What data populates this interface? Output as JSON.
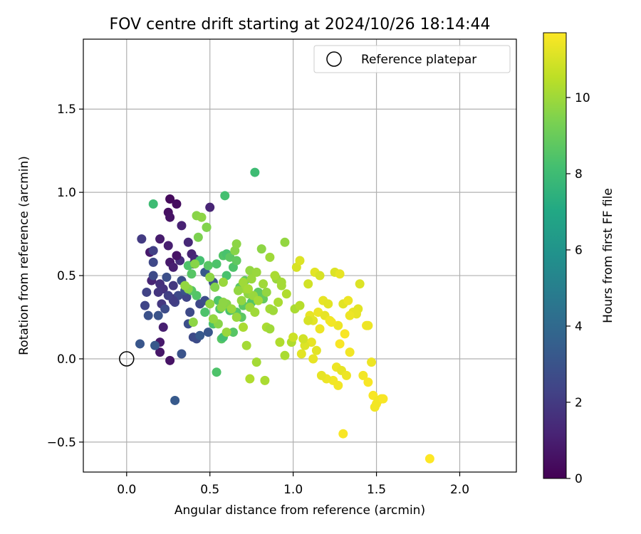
{
  "chart_data": {
    "type": "scatter",
    "title": "FOV centre drift starting at 2024/10/26 18:14:44",
    "xlabel": "Angular distance from reference (arcmin)",
    "ylabel": "Rotation from reference (arcmin)",
    "xlim": [
      -0.26,
      2.34
    ],
    "ylim": [
      -0.68,
      1.92
    ],
    "xticks": [
      0.0,
      0.5,
      1.0,
      1.5,
      2.0
    ],
    "xtick_labels": [
      "0.0",
      "0.5",
      "1.0",
      "1.5",
      "2.0"
    ],
    "yticks": [
      -0.5,
      0.0,
      0.5,
      1.0,
      1.5
    ],
    "ytick_labels": [
      "−0.5",
      "0.0",
      "0.5",
      "1.0",
      "1.5"
    ],
    "grid": true,
    "legend": {
      "placement": "top-right",
      "entries": [
        "Reference platepar"
      ]
    },
    "reference_point": {
      "x": 0.0,
      "y": 0.0,
      "label": "Reference platepar"
    },
    "colorbar": {
      "label": "Hours from first FF file",
      "range": [
        0,
        11.7
      ],
      "ticks": [
        0,
        2,
        4,
        6,
        8,
        10
      ],
      "tick_labels": [
        "0",
        "2",
        "4",
        "6",
        "8",
        "10"
      ],
      "colormap": [
        "#440154",
        "#482475",
        "#414487",
        "#355f8d",
        "#2a788e",
        "#21918c",
        "#22a884",
        "#44bf70",
        "#7ad151",
        "#bddf26",
        "#fde725"
      ]
    },
    "series": [
      {
        "x": [
          0.26,
          0.3,
          0.25,
          0.26,
          0.14,
          0.2,
          0.25,
          0.33,
          0.39,
          0.37,
          0.41,
          0.32,
          0.4,
          0.2,
          0.22,
          0.19,
          0.28,
          0.21,
          0.15,
          0.28,
          0.22,
          0.2,
          0.26,
          0.2,
          0.3,
          0.26,
          0.28,
          0.5
        ],
        "y": [
          0.96,
          0.93,
          0.88,
          0.85,
          0.64,
          0.72,
          0.68,
          0.8,
          0.63,
          0.7,
          0.6,
          0.59,
          0.57,
          0.45,
          0.42,
          0.4,
          0.44,
          0.33,
          0.47,
          0.36,
          0.19,
          0.1,
          -0.01,
          0.04,
          0.62,
          0.58,
          0.55,
          0.91
        ],
        "t": [
          0.3,
          0.4,
          0.5,
          0.6,
          0.8,
          0.9,
          1.0,
          1.1,
          1.2,
          1.3,
          1.4,
          1.5,
          1.5,
          1.6,
          1.7,
          1.8,
          1.9,
          1.9,
          1.2,
          1.4,
          1.0,
          0.8,
          0.6,
          0.7,
          0.6,
          0.8,
          1.0,
          1.2
        ]
      },
      {
        "x": [
          0.09,
          0.16,
          0.12,
          0.11,
          0.16,
          0.16,
          0.23,
          0.24,
          0.13,
          0.19,
          0.08,
          0.17,
          0.29,
          0.33,
          0.37,
          0.4,
          0.42,
          0.44,
          0.49,
          0.38,
          0.36,
          0.29,
          0.31,
          0.33,
          0.35,
          0.44,
          0.47,
          0.52,
          0.47,
          0.28,
          0.25
        ],
        "y": [
          0.72,
          0.65,
          0.4,
          0.32,
          0.58,
          0.5,
          0.3,
          0.49,
          0.26,
          0.26,
          0.09,
          0.08,
          -0.25,
          0.03,
          0.21,
          0.13,
          0.12,
          0.14,
          0.16,
          0.28,
          0.37,
          0.34,
          0.38,
          0.47,
          0.41,
          0.33,
          0.35,
          0.46,
          0.52,
          0.35,
          0.38
        ],
        "t": [
          2.0,
          2.2,
          2.3,
          2.4,
          2.5,
          2.6,
          2.7,
          2.8,
          2.9,
          3.0,
          3.1,
          3.2,
          3.3,
          3.0,
          2.8,
          2.6,
          2.7,
          3.3,
          3.1,
          2.6,
          2.4,
          2.3,
          2.6,
          2.8,
          3.0,
          2.5,
          2.7,
          2.9,
          3.2,
          2.1,
          2.2
        ]
      },
      {
        "x": [
          0.16,
          0.37,
          0.39,
          0.44,
          0.49,
          0.54,
          0.58,
          0.6,
          0.62,
          0.64,
          0.77,
          0.59,
          0.48,
          0.54,
          0.57,
          0.66,
          0.68,
          0.71,
          0.73,
          0.56,
          0.62,
          0.66,
          0.7,
          0.75,
          0.79,
          0.82,
          0.55,
          0.6,
          0.64,
          0.69,
          0.58,
          0.52,
          0.47,
          0.42,
          0.39
        ],
        "y": [
          0.93,
          0.56,
          0.51,
          0.59,
          0.56,
          0.57,
          0.62,
          0.63,
          0.61,
          0.55,
          1.12,
          0.98,
          0.79,
          -0.08,
          0.12,
          0.59,
          0.43,
          0.47,
          0.4,
          0.3,
          0.29,
          0.28,
          0.32,
          0.34,
          0.4,
          0.36,
          0.35,
          0.5,
          0.16,
          0.25,
          0.13,
          0.21,
          0.28,
          0.38,
          0.41
        ],
        "t": [
          8.0,
          8.4,
          8.6,
          8.2,
          8.6,
          8.4,
          8.5,
          8.3,
          8.7,
          8.4,
          8.0,
          8.2,
          8.5,
          8.4,
          8.6,
          8.8,
          8.7,
          8.8,
          8.9,
          8.5,
          8.3,
          8.6,
          8.7,
          8.5,
          8.8,
          8.9,
          8.4,
          8.3,
          8.6,
          8.7,
          8.2,
          8.3,
          8.4,
          8.5,
          8.6
        ]
      },
      {
        "x": [
          0.42,
          0.45,
          0.48,
          0.43,
          0.37,
          0.35,
          0.5,
          0.58,
          0.65,
          0.74,
          0.78,
          0.81,
          0.86,
          0.9,
          0.93,
          0.95,
          0.74,
          0.77,
          0.84,
          0.86,
          0.88,
          0.91,
          0.73,
          0.69,
          0.66,
          0.71,
          0.76,
          0.79,
          0.84,
          0.86,
          0.92,
          0.95,
          0.99,
          0.6,
          0.57,
          0.53,
          0.55,
          0.52,
          0.58,
          0.63,
          0.67,
          0.7,
          0.73,
          0.75,
          0.82,
          0.89,
          0.93,
          0.96,
          1.01,
          1.04,
          0.78,
          0.83,
          0.74,
          0.72,
          0.7,
          0.6,
          0.5,
          0.4,
          0.41,
          0.66
        ],
        "y": [
          0.86,
          0.85,
          0.79,
          0.73,
          0.42,
          0.44,
          0.49,
          0.46,
          0.65,
          0.53,
          0.52,
          0.66,
          0.61,
          0.48,
          0.46,
          0.7,
          0.31,
          0.28,
          0.4,
          0.3,
          0.29,
          0.34,
          0.39,
          0.35,
          0.25,
          0.42,
          0.38,
          0.35,
          0.19,
          0.18,
          0.1,
          0.02,
          0.1,
          0.33,
          0.31,
          0.43,
          0.21,
          0.24,
          0.34,
          0.3,
          0.41,
          0.46,
          0.42,
          0.48,
          0.45,
          0.5,
          0.44,
          0.39,
          0.3,
          0.32,
          -0.02,
          -0.13,
          -0.12,
          0.08,
          0.19,
          0.16,
          0.33,
          0.22,
          0.57,
          0.69
        ],
        "t": [
          9.6,
          9.7,
          9.5,
          9.4,
          9.6,
          9.8,
          9.7,
          9.9,
          9.6,
          9.8,
          9.9,
          9.7,
          10.0,
          9.9,
          10.1,
          9.8,
          9.9,
          10.0,
          9.8,
          10.1,
          10.0,
          10.2,
          9.7,
          9.8,
          9.9,
          10.0,
          9.9,
          10.1,
          10.2,
          10.0,
          10.3,
          10.2,
          10.3,
          9.6,
          9.7,
          9.5,
          9.6,
          9.8,
          9.7,
          9.9,
          9.8,
          10.0,
          10.1,
          9.9,
          10.0,
          10.2,
          10.1,
          10.3,
          10.2,
          10.4,
          10.1,
          10.2,
          10.3,
          10.1,
          10.2,
          9.9,
          9.8,
          9.7,
          9.6,
          9.7
        ]
      },
      {
        "x": [
          1.02,
          1.04,
          1.09,
          1.13,
          1.16,
          1.18,
          1.21,
          1.25,
          1.28,
          1.3,
          1.33,
          1.36,
          1.39,
          1.44,
          1.47,
          1.5,
          1.53,
          1.1,
          1.12,
          1.15,
          1.19,
          1.22,
          1.27,
          1.31,
          1.34,
          1.38,
          1.4,
          1.45,
          1.48,
          1.51,
          1.54,
          1.26,
          1.24,
          1.29,
          1.32,
          1.27,
          1.2,
          1.17,
          1.14,
          1.11,
          1.07,
          1.05,
          1.12,
          1.16,
          1.23,
          1.28,
          1.34,
          1.42,
          1.45,
          1.49,
          1.3,
          1.82,
          1.0,
          1.06,
          1.09
        ],
        "y": [
          0.55,
          0.59,
          0.45,
          0.52,
          0.5,
          0.35,
          0.33,
          0.52,
          0.51,
          0.33,
          0.35,
          0.28,
          0.3,
          0.2,
          -0.02,
          -0.27,
          -0.24,
          0.26,
          0.23,
          0.28,
          0.26,
          0.23,
          0.2,
          0.15,
          0.04,
          0.27,
          0.45,
          0.2,
          -0.22,
          -0.25,
          -0.24,
          -0.05,
          -0.13,
          -0.07,
          -0.1,
          -0.16,
          -0.12,
          -0.1,
          0.05,
          0.1,
          0.08,
          0.03,
          0.0,
          0.18,
          0.22,
          0.09,
          0.26,
          -0.1,
          -0.14,
          -0.29,
          -0.45,
          -0.6,
          0.13,
          0.12,
          0.23
        ],
        "t": [
          11.0,
          11.1,
          10.9,
          11.2,
          11.0,
          11.3,
          11.2,
          11.1,
          11.3,
          11.2,
          11.4,
          11.3,
          11.2,
          11.5,
          11.4,
          11.6,
          11.5,
          11.3,
          11.2,
          11.4,
          11.3,
          11.5,
          11.4,
          11.6,
          11.5,
          11.3,
          11.1,
          11.4,
          11.6,
          11.5,
          11.6,
          11.4,
          11.5,
          11.3,
          11.4,
          11.5,
          11.4,
          11.3,
          11.2,
          11.3,
          11.1,
          11.2,
          11.3,
          11.4,
          11.5,
          11.6,
          11.4,
          11.5,
          11.6,
          11.5,
          11.6,
          11.7,
          10.8,
          10.9,
          11.0
        ]
      }
    ]
  }
}
